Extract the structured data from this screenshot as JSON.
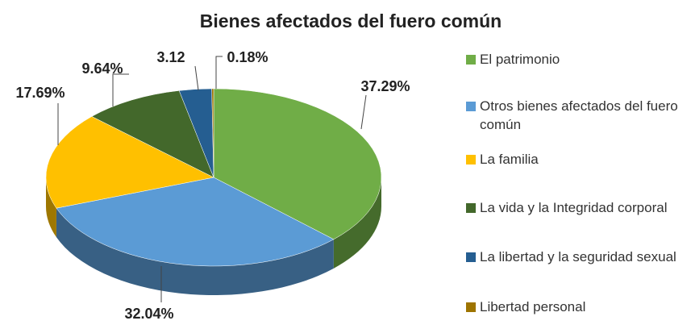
{
  "chart_data": {
    "type": "pie",
    "title": "Bienes afectados del fuero común",
    "categories": [
      "El patrimonio",
      "Otros bienes afectados del fuero común",
      "La familia",
      "La vida y la Integridad corporal",
      "La libertad y la seguridad sexual",
      "Libertad personal"
    ],
    "values": [
      37.29,
      32.04,
      17.69,
      9.64,
      3.12,
      0.18
    ],
    "value_labels": [
      "37.29%",
      "32.04%",
      "17.69%",
      "9.64%",
      "3.12",
      "0.18%"
    ],
    "colors": [
      "#70ad47",
      "#5b9bd5",
      "#ffc000",
      "#43682b",
      "#255e91",
      "#9e7400"
    ],
    "legend": "right"
  }
}
